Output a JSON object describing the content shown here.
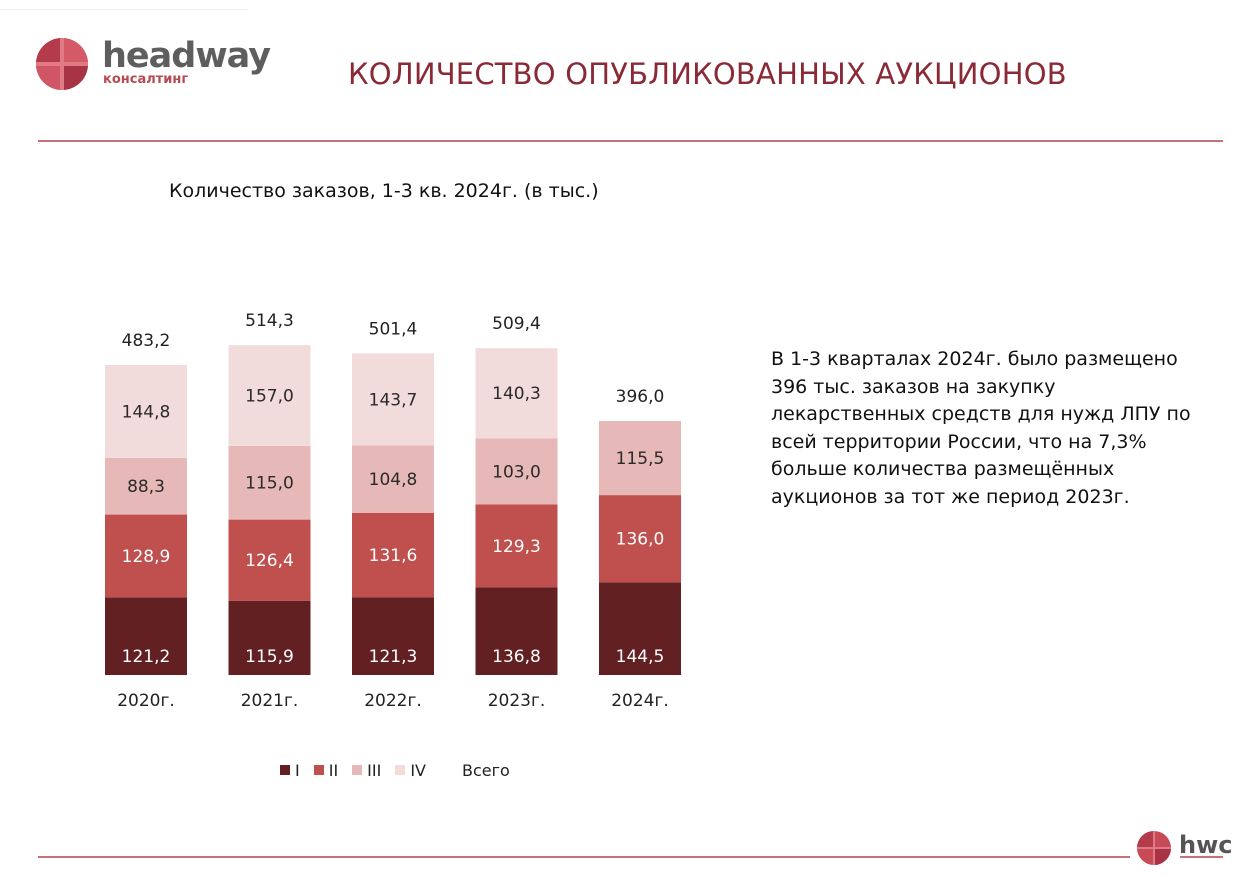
{
  "brand": {
    "logo_word": "headway",
    "logo_sub": "консалтинг",
    "footer_logo": "hwc",
    "accent_color": "#8a2a36",
    "rule_color": "#c7727a"
  },
  "page": {
    "title": "КОЛИЧЕСТВО ОПУБЛИКОВАННЫХ АУКЦИОНОВ"
  },
  "side_text": "В 1-3 кварталах 2024г. было размещено 396 тыс. заказов на закупку лекарственных средств для нужд ЛПУ по всей территории России, что на 7,3% больше количества размещённых аукционов за тот же период 2023г.",
  "chart_data": {
    "type": "bar",
    "stacked": true,
    "title": "Количество заказов, 1-3 кв. 2024г. (в тыс.)",
    "categories": [
      "2020г.",
      "2021г.",
      "2022г.",
      "2023г.",
      "2024г."
    ],
    "series": [
      {
        "name": "I",
        "color": "#632023",
        "values": [
          121.2,
          115.9,
          121.3,
          136.8,
          144.5
        ],
        "labels": [
          "121,2",
          "115,9",
          "121,3",
          "136,8",
          "144,5"
        ]
      },
      {
        "name": "II",
        "color": "#c0504d",
        "values": [
          128.9,
          126.4,
          131.6,
          129.3,
          136.0
        ],
        "labels": [
          "128,9",
          "126,4",
          "131,6",
          "129,3",
          "136,0"
        ]
      },
      {
        "name": "III",
        "color": "#e6b9b8",
        "values": [
          88.3,
          115.0,
          104.8,
          103.0,
          115.5
        ],
        "labels": [
          "88,3",
          "115,0",
          "104,8",
          "103,0",
          "115,5"
        ]
      },
      {
        "name": "IV",
        "color": "#f2dcdb",
        "values": [
          144.8,
          157.0,
          143.7,
          140.3,
          null
        ],
        "labels": [
          "144,8",
          "157,0",
          "143,7",
          "140,3",
          null
        ]
      }
    ],
    "totals": [
      483.2,
      514.3,
      501.4,
      509.4,
      396.0
    ],
    "total_labels": [
      "483,2",
      "514,3",
      "501,4",
      "509,4",
      "396,0"
    ],
    "total_legend_label": "Всего",
    "legend_position": "bottom",
    "grid": false,
    "ylim": [
      0,
      514.3
    ]
  }
}
